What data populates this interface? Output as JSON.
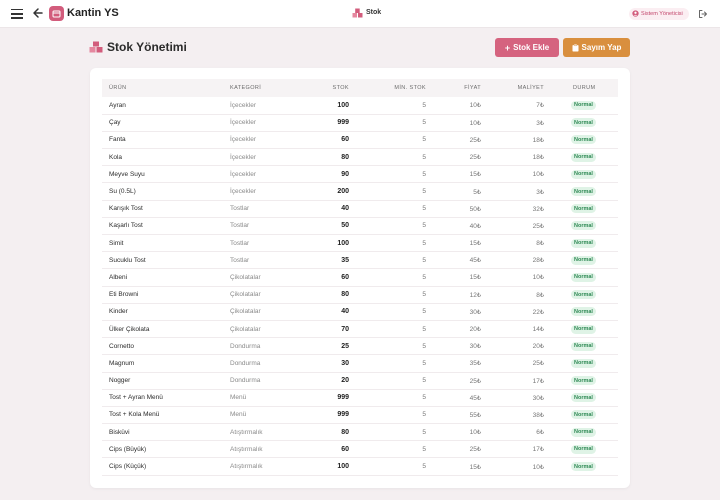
{
  "app": {
    "name": "Kantin YS",
    "current_page": "Stok",
    "user_role": "Sistem Yöneticisi"
  },
  "page": {
    "title": "Stok Yönetimi",
    "buttons": {
      "add_stock": "Stok Ekle",
      "count": "Sayım Yap"
    }
  },
  "table": {
    "headers": {
      "product": "ÜRÜN",
      "category": "KATEGORİ",
      "stock": "STOK",
      "min_stock": "MİN. STOK",
      "price": "FİYAT",
      "cost": "MALİYET",
      "status": "DURUM"
    },
    "rows": [
      {
        "product": "Ayran",
        "category": "İçecekler",
        "stock": "100",
        "min_stock": "5",
        "price": "10₺",
        "cost": "7₺",
        "status": "Normal"
      },
      {
        "product": "Çay",
        "category": "İçecekler",
        "stock": "999",
        "min_stock": "5",
        "price": "10₺",
        "cost": "3₺",
        "status": "Normal"
      },
      {
        "product": "Fanta",
        "category": "İçecekler",
        "stock": "60",
        "min_stock": "5",
        "price": "25₺",
        "cost": "18₺",
        "status": "Normal"
      },
      {
        "product": "Kola",
        "category": "İçecekler",
        "stock": "80",
        "min_stock": "5",
        "price": "25₺",
        "cost": "18₺",
        "status": "Normal"
      },
      {
        "product": "Meyve Suyu",
        "category": "İçecekler",
        "stock": "90",
        "min_stock": "5",
        "price": "15₺",
        "cost": "10₺",
        "status": "Normal"
      },
      {
        "product": "Su (0.5L)",
        "category": "İçecekler",
        "stock": "200",
        "min_stock": "5",
        "price": "5₺",
        "cost": "3₺",
        "status": "Normal"
      },
      {
        "product": "Karışık Tost",
        "category": "Tostlar",
        "stock": "40",
        "min_stock": "5",
        "price": "50₺",
        "cost": "32₺",
        "status": "Normal"
      },
      {
        "product": "Kaşarlı Tost",
        "category": "Tostlar",
        "stock": "50",
        "min_stock": "5",
        "price": "40₺",
        "cost": "25₺",
        "status": "Normal"
      },
      {
        "product": "Simit",
        "category": "Tostlar",
        "stock": "100",
        "min_stock": "5",
        "price": "15₺",
        "cost": "8₺",
        "status": "Normal"
      },
      {
        "product": "Sucuklu Tost",
        "category": "Tostlar",
        "stock": "35",
        "min_stock": "5",
        "price": "45₺",
        "cost": "28₺",
        "status": "Normal"
      },
      {
        "product": "Albeni",
        "category": "Çikolatalar",
        "stock": "60",
        "min_stock": "5",
        "price": "15₺",
        "cost": "10₺",
        "status": "Normal"
      },
      {
        "product": "Eti Browni",
        "category": "Çikolatalar",
        "stock": "80",
        "min_stock": "5",
        "price": "12₺",
        "cost": "8₺",
        "status": "Normal"
      },
      {
        "product": "Kinder",
        "category": "Çikolatalar",
        "stock": "40",
        "min_stock": "5",
        "price": "30₺",
        "cost": "22₺",
        "status": "Normal"
      },
      {
        "product": "Ülker Çikolata",
        "category": "Çikolatalar",
        "stock": "70",
        "min_stock": "5",
        "price": "20₺",
        "cost": "14₺",
        "status": "Normal"
      },
      {
        "product": "Cornetto",
        "category": "Dondurma",
        "stock": "25",
        "min_stock": "5",
        "price": "30₺",
        "cost": "20₺",
        "status": "Normal"
      },
      {
        "product": "Magnum",
        "category": "Dondurma",
        "stock": "30",
        "min_stock": "5",
        "price": "35₺",
        "cost": "25₺",
        "status": "Normal"
      },
      {
        "product": "Nogger",
        "category": "Dondurma",
        "stock": "20",
        "min_stock": "5",
        "price": "25₺",
        "cost": "17₺",
        "status": "Normal"
      },
      {
        "product": "Tost + Ayran Menü",
        "category": "Menü",
        "stock": "999",
        "min_stock": "5",
        "price": "45₺",
        "cost": "30₺",
        "status": "Normal"
      },
      {
        "product": "Tost + Kola Menü",
        "category": "Menü",
        "stock": "999",
        "min_stock": "5",
        "price": "55₺",
        "cost": "38₺",
        "status": "Normal"
      },
      {
        "product": "Bisküvi",
        "category": "Atıştırmalık",
        "stock": "80",
        "min_stock": "5",
        "price": "10₺",
        "cost": "6₺",
        "status": "Normal"
      },
      {
        "product": "Cips (Büyük)",
        "category": "Atıştırmalık",
        "stock": "60",
        "min_stock": "5",
        "price": "25₺",
        "cost": "17₺",
        "status": "Normal"
      },
      {
        "product": "Cips (Küçük)",
        "category": "Atıştırmalık",
        "stock": "100",
        "min_stock": "5",
        "price": "15₺",
        "cost": "10₺",
        "status": "Normal"
      }
    ]
  },
  "icons": {
    "menu": "hamburger-icon",
    "back": "arrow-left-icon",
    "logo": "store-icon",
    "page": "boxes-icon",
    "user": "user-circle-icon",
    "logout": "logout-icon",
    "add": "plus-icon",
    "count": "clipboard-icon"
  },
  "colors": {
    "brand": "#d25c7c",
    "add_button": "#d5637f",
    "count_button": "#d98f3e",
    "status_normal_bg": "#dff3e6",
    "status_normal_text": "#2f8a55",
    "background": "#f4eff1"
  }
}
